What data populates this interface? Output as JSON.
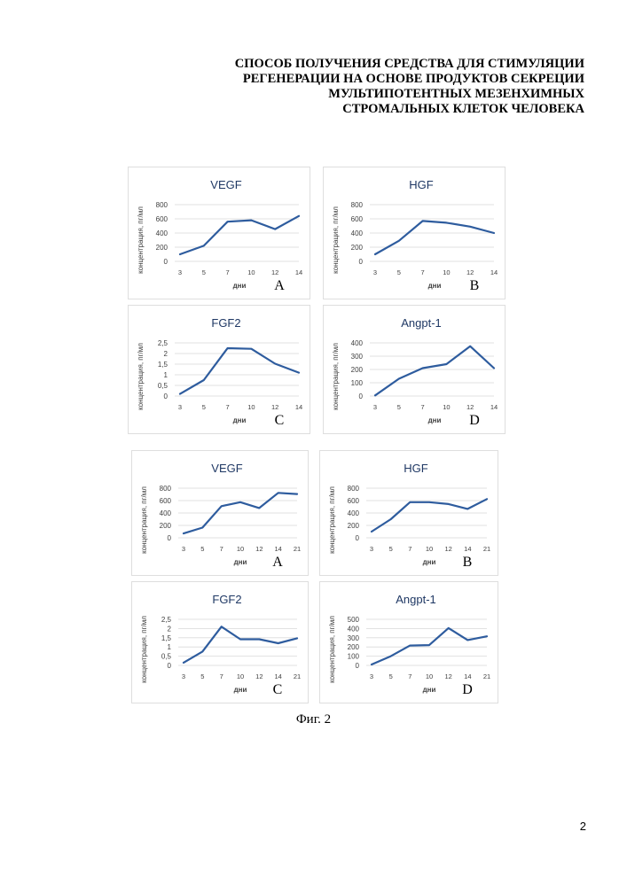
{
  "document": {
    "title_lines": [
      "СПОСОБ ПОЛУЧЕНИЯ СРЕДСТВА ДЛЯ СТИМУЛЯЦИИ",
      "РЕГЕНЕРАЦИИ НА ОСНОВЕ ПРОДУКТОВ СЕКРЕЦИИ",
      "МУЛЬТИПОТЕНТНЫХ МЕЗЕНХИМНЫХ",
      "СТРОМАЛЬНЫХ КЛЕТОК ЧЕЛОВЕКА"
    ],
    "figure_caption": "Фиг. 2",
    "page_number": "2"
  },
  "chart_data": [
    {
      "type": "line",
      "title": "VEGF",
      "panel_letter": "A",
      "xlabel": "дни",
      "ylabel": "концентрация, пг/мл",
      "categories": [
        "3",
        "5",
        "7",
        "10",
        "12",
        "14"
      ],
      "values": [
        100,
        220,
        560,
        580,
        455,
        640
      ],
      "yticks": [
        "0",
        "200",
        "400",
        "600",
        "800"
      ],
      "ylim": [
        0,
        800
      ],
      "grid": true,
      "line_color": "#2e5c9e"
    },
    {
      "type": "line",
      "title": "HGF",
      "panel_letter": "B",
      "xlabel": "дни",
      "ylabel": "концентрация, пг/мл",
      "categories": [
        "3",
        "5",
        "7",
        "10",
        "12",
        "14"
      ],
      "values": [
        100,
        290,
        570,
        545,
        490,
        400
      ],
      "yticks": [
        "0",
        "200",
        "400",
        "600",
        "800"
      ],
      "ylim": [
        0,
        800
      ],
      "grid": true,
      "line_color": "#2e5c9e"
    },
    {
      "type": "line",
      "title": "FGF2",
      "panel_letter": "C",
      "xlabel": "дни",
      "ylabel": "концентрация, пг/мл",
      "categories": [
        "3",
        "5",
        "7",
        "10",
        "12",
        "14"
      ],
      "values": [
        0.1,
        0.75,
        2.25,
        2.22,
        1.52,
        1.1
      ],
      "yticks": [
        "0",
        "0,5",
        "1",
        "1,5",
        "2",
        "2,5"
      ],
      "ylim": [
        0,
        2.5
      ],
      "grid": true,
      "line_color": "#2e5c9e"
    },
    {
      "type": "line",
      "title": "Angpt-1",
      "panel_letter": "D",
      "xlabel": "дни",
      "ylabel": "концентрация, пг/мл",
      "categories": [
        "3",
        "5",
        "7",
        "10",
        "12",
        "14"
      ],
      "values": [
        5,
        130,
        210,
        240,
        375,
        210
      ],
      "yticks": [
        "0",
        "100",
        "200",
        "300",
        "400"
      ],
      "ylim": [
        0,
        400
      ],
      "grid": true,
      "line_color": "#2e5c9e"
    },
    {
      "type": "line",
      "title": "VEGF",
      "panel_letter": "A",
      "xlabel": "дни",
      "ylabel": "концентрация, пг/мл",
      "categories": [
        "3",
        "5",
        "7",
        "10",
        "12",
        "14",
        "21"
      ],
      "values": [
        70,
        165,
        510,
        575,
        480,
        725,
        705
      ],
      "yticks": [
        "0",
        "200",
        "400",
        "600",
        "800"
      ],
      "ylim": [
        0,
        800
      ],
      "grid": true,
      "line_color": "#2e5c9e"
    },
    {
      "type": "line",
      "title": "HGF",
      "panel_letter": "B",
      "xlabel": "дни",
      "ylabel": "концентрация, пг/мл",
      "categories": [
        "3",
        "5",
        "7",
        "10",
        "12",
        "14",
        "21"
      ],
      "values": [
        100,
        300,
        575,
        575,
        545,
        465,
        625
      ],
      "yticks": [
        "0",
        "200",
        "400",
        "600",
        "800"
      ],
      "ylim": [
        0,
        800
      ],
      "grid": true,
      "line_color": "#2e5c9e"
    },
    {
      "type": "line",
      "title": "FGF2",
      "panel_letter": "C",
      "xlabel": "дни",
      "ylabel": "концентрация, пг/мл",
      "categories": [
        "3",
        "5",
        "7",
        "10",
        "12",
        "14",
        "21"
      ],
      "values": [
        0.15,
        0.75,
        2.1,
        1.42,
        1.42,
        1.2,
        1.47
      ],
      "yticks": [
        "0",
        "0,5",
        "1",
        "1,5",
        "2",
        "2,5"
      ],
      "ylim": [
        0,
        2.5
      ],
      "grid": true,
      "line_color": "#2e5c9e"
    },
    {
      "type": "line",
      "title": "Angpt-1",
      "panel_letter": "D",
      "xlabel": "дни",
      "ylabel": "концентрация, пг/мл",
      "categories": [
        "3",
        "5",
        "7",
        "10",
        "12",
        "14",
        "21"
      ],
      "values": [
        10,
        100,
        215,
        220,
        405,
        275,
        315
      ],
      "yticks": [
        "0",
        "100",
        "200",
        "300",
        "400",
        "500"
      ],
      "ylim": [
        0,
        500
      ],
      "grid": true,
      "line_color": "#2e5c9e"
    }
  ]
}
